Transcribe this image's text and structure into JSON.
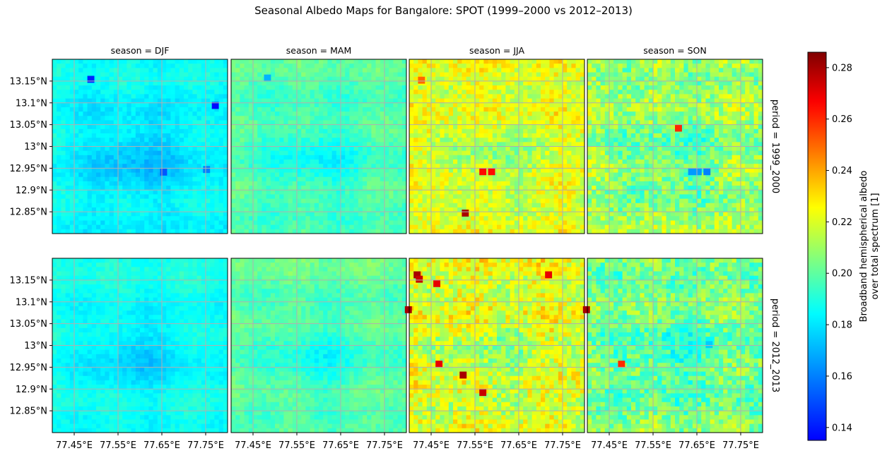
{
  "title": "Seasonal Albedo Maps for Bangalore: SPOT (1999–2000 vs 2012–2013)",
  "chart_data": {
    "type": "heatmap",
    "title": "Seasonal Albedo Maps for Bangalore: SPOT (1999–2000 vs 2012–2013)",
    "facet_cols": [
      "season = DJF",
      "season = MAM",
      "season = JJA",
      "season = SON"
    ],
    "facet_rows": [
      "period = 1999_2000",
      "period = 2012_2013"
    ],
    "x_ticks": [
      77.45,
      77.55,
      77.65,
      77.75
    ],
    "x_tick_labels": [
      "77.45°E",
      "77.55°E",
      "77.65°E",
      "77.75°E"
    ],
    "y_ticks": [
      13.15,
      13.1,
      13.05,
      13.0,
      12.95,
      12.9,
      12.85
    ],
    "y_tick_labels": [
      "13.15°N",
      "13.1°N",
      "13.05°N",
      "13°N",
      "12.95°N",
      "12.9°N",
      "12.85°N"
    ],
    "xlim": [
      77.4,
      77.8
    ],
    "ylim": [
      12.8,
      13.2
    ],
    "grid": true,
    "grid_color": "#b0b0b0",
    "colorbar": {
      "label_line1": "Broadband hemispherical albedo",
      "label_line2": "over total spectrum [1]",
      "vmin": 0.135,
      "vmax": 0.286,
      "ticks": [
        0.14,
        0.16,
        0.18,
        0.2,
        0.22,
        0.24,
        0.26,
        0.28
      ],
      "tick_labels": [
        "0.14",
        "0.16",
        "0.18",
        "0.20",
        "0.22",
        "0.24",
        "0.26",
        "0.28"
      ],
      "colormap": "jet",
      "colors": [
        "#0000ff",
        "#00ffff",
        "#ffff00",
        "#ff0000",
        "#800000"
      ]
    },
    "panels": [
      {
        "period": "1999_2000",
        "season": "DJF",
        "mean": 0.185,
        "spread": 0.009,
        "features": [
          {
            "lon": 77.49,
            "lat": 13.152,
            "value": 0.142
          },
          {
            "lon": 77.774,
            "lat": 13.092,
            "value": 0.137
          },
          {
            "lon": 77.656,
            "lat": 12.939,
            "value": 0.152
          },
          {
            "lon": 77.754,
            "lat": 12.945,
            "value": 0.16
          }
        ]
      },
      {
        "period": "1999_2000",
        "season": "MAM",
        "mean": 0.198,
        "spread": 0.01,
        "features": [
          {
            "lon": 77.485,
            "lat": 13.155,
            "value": 0.17
          }
        ]
      },
      {
        "period": "1999_2000",
        "season": "JJA",
        "mean": 0.222,
        "spread": 0.011,
        "features": [
          {
            "lon": 77.57,
            "lat": 12.94,
            "value": 0.265
          },
          {
            "lon": 77.59,
            "lat": 12.94,
            "value": 0.265
          },
          {
            "lon": 77.53,
            "lat": 12.845,
            "value": 0.28
          },
          {
            "lon": 77.43,
            "lat": 13.15,
            "value": 0.25
          }
        ]
      },
      {
        "period": "1999_2000",
        "season": "SON",
        "mean": 0.21,
        "spread": 0.013,
        "features": [
          {
            "lon": 77.61,
            "lat": 13.04,
            "value": 0.26
          },
          {
            "lon": 77.64,
            "lat": 12.94,
            "value": 0.165
          },
          {
            "lon": 77.655,
            "lat": 12.94,
            "value": 0.165
          },
          {
            "lon": 77.675,
            "lat": 12.94,
            "value": 0.16
          }
        ]
      },
      {
        "period": "2012_2013",
        "season": "DJF",
        "mean": 0.188,
        "spread": 0.008,
        "features": []
      },
      {
        "period": "2012_2013",
        "season": "MAM",
        "mean": 0.2,
        "spread": 0.01,
        "features": []
      },
      {
        "period": "2012_2013",
        "season": "JJA",
        "mean": 0.222,
        "spread": 0.014,
        "features": [
          {
            "lon": 77.42,
            "lat": 13.16,
            "value": 0.28
          },
          {
            "lon": 77.425,
            "lat": 13.15,
            "value": 0.275
          },
          {
            "lon": 77.465,
            "lat": 13.14,
            "value": 0.27
          },
          {
            "lon": 77.47,
            "lat": 12.955,
            "value": 0.27
          },
          {
            "lon": 77.525,
            "lat": 12.93,
            "value": 0.28
          },
          {
            "lon": 77.57,
            "lat": 12.89,
            "value": 0.275
          },
          {
            "lon": 77.72,
            "lat": 13.16,
            "value": 0.27
          },
          {
            "lon": 77.4,
            "lat": 13.08,
            "value": 0.28
          }
        ]
      },
      {
        "period": "2012_2013",
        "season": "SON",
        "mean": 0.205,
        "spread": 0.013,
        "features": [
          {
            "lon": 77.4,
            "lat": 13.08,
            "value": 0.28
          },
          {
            "lon": 77.68,
            "lat": 13.0,
            "value": 0.175
          },
          {
            "lon": 77.48,
            "lat": 12.955,
            "value": 0.26
          }
        ]
      }
    ]
  }
}
